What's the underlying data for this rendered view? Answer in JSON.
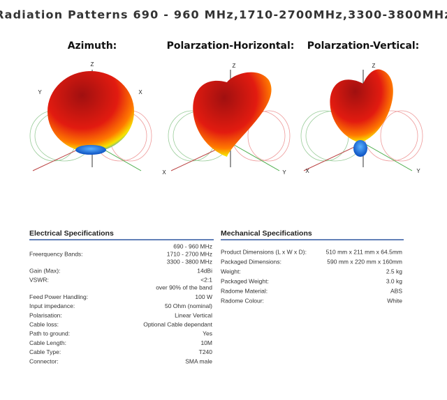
{
  "title": "Radiation Patterns  690 - 960 MHz,1710-2700MHz,3300-3800MHz",
  "patterns": [
    {
      "caption": "Azimuth:",
      "axes": [
        "Z",
        "Y",
        "X"
      ]
    },
    {
      "caption": "Polarzation-Horizontal:",
      "axes": [
        "Z",
        "X",
        "Y"
      ]
    },
    {
      "caption": "Polarzation-Vertical:",
      "axes": [
        "Z",
        "X",
        "Y"
      ]
    }
  ],
  "electrical": {
    "heading": "Electrical Specifications",
    "rows": [
      {
        "label": "Freerquency Bands:",
        "value": [
          "690 - 960 MHz",
          "1710 - 2700 MHz",
          "3300 - 3800 MHz"
        ]
      },
      {
        "label": "Gain (Max):",
        "value": [
          "14dBi"
        ]
      },
      {
        "label": "VSWR:",
        "value": [
          "<2:1",
          "over 90% of the band"
        ]
      },
      {
        "label": "Feed Power Handling:",
        "value": [
          "100 W"
        ]
      },
      {
        "label": "Input impedance:",
        "value": [
          "50 Ohm (nominal)"
        ]
      },
      {
        "label": "Polarisation:",
        "value": [
          "Linear Vertical"
        ]
      },
      {
        "label": "Cable loss:",
        "value": [
          "Optional Cable dependant"
        ]
      },
      {
        "label": "Path to ground:",
        "value": [
          "Yes"
        ]
      },
      {
        "label": "Cable Length:",
        "value": [
          "10M"
        ]
      },
      {
        "label": "Cable Type:",
        "value": [
          "T240"
        ]
      },
      {
        "label": "Connector:",
        "value": [
          "SMA male"
        ]
      }
    ]
  },
  "mechanical": {
    "heading": "Mechanical Specifications",
    "rows": [
      {
        "label": "Product Dimensions (L x W x D):",
        "value": [
          "510 mm x 211 mm x 64.5mm"
        ]
      },
      {
        "label": "Packaged Dimensions:",
        "value": [
          "590 mm x 220 mm x 160mm"
        ]
      },
      {
        "label": "Weight:",
        "value": [
          "2.5 kg"
        ]
      },
      {
        "label": "Packaged Weight:",
        "value": [
          "3.0 kg"
        ]
      },
      {
        "label": "Radome Material:",
        "value": [
          "ABS"
        ]
      },
      {
        "label": "Radome Colour:",
        "value": [
          "White"
        ]
      }
    ]
  }
}
